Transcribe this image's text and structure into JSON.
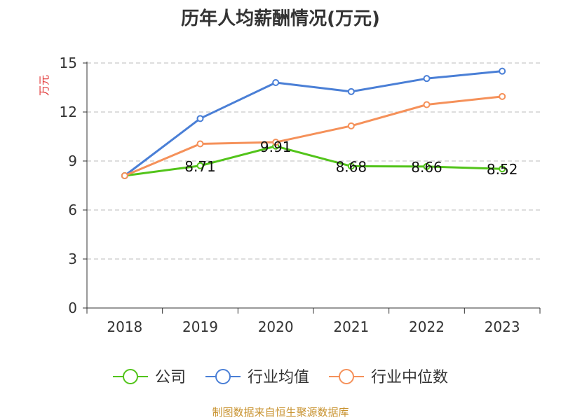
{
  "chart_data": {
    "type": "line",
    "title": "历年人均薪酬情况(万元)",
    "ylabel": "万元",
    "xlabel": "",
    "categories": [
      "2018",
      "2019",
      "2020",
      "2021",
      "2022",
      "2023"
    ],
    "ylim": [
      0,
      15
    ],
    "yticks": [
      0,
      3,
      6,
      9,
      12,
      15
    ],
    "grid": true,
    "legend_position": "bottom",
    "series": [
      {
        "name": "公司",
        "color": "#52c41a",
        "values": [
          8.1,
          8.71,
          9.91,
          8.68,
          8.66,
          8.52
        ],
        "labels": [
          "",
          "8.71",
          "9.91",
          "8.68",
          "8.66",
          "8.52"
        ]
      },
      {
        "name": "行业均值",
        "color": "#4a7fd6",
        "values": [
          8.1,
          11.6,
          13.8,
          13.25,
          14.05,
          14.5
        ],
        "labels": [
          "",
          "",
          "",
          "",
          "",
          ""
        ]
      },
      {
        "name": "行业中位数",
        "color": "#f5915a",
        "values": [
          8.1,
          10.05,
          10.15,
          11.15,
          12.45,
          12.95
        ],
        "labels": [
          "",
          "",
          "",
          "",
          "",
          ""
        ]
      }
    ]
  },
  "source": "制图数据来自恒生聚源数据库"
}
